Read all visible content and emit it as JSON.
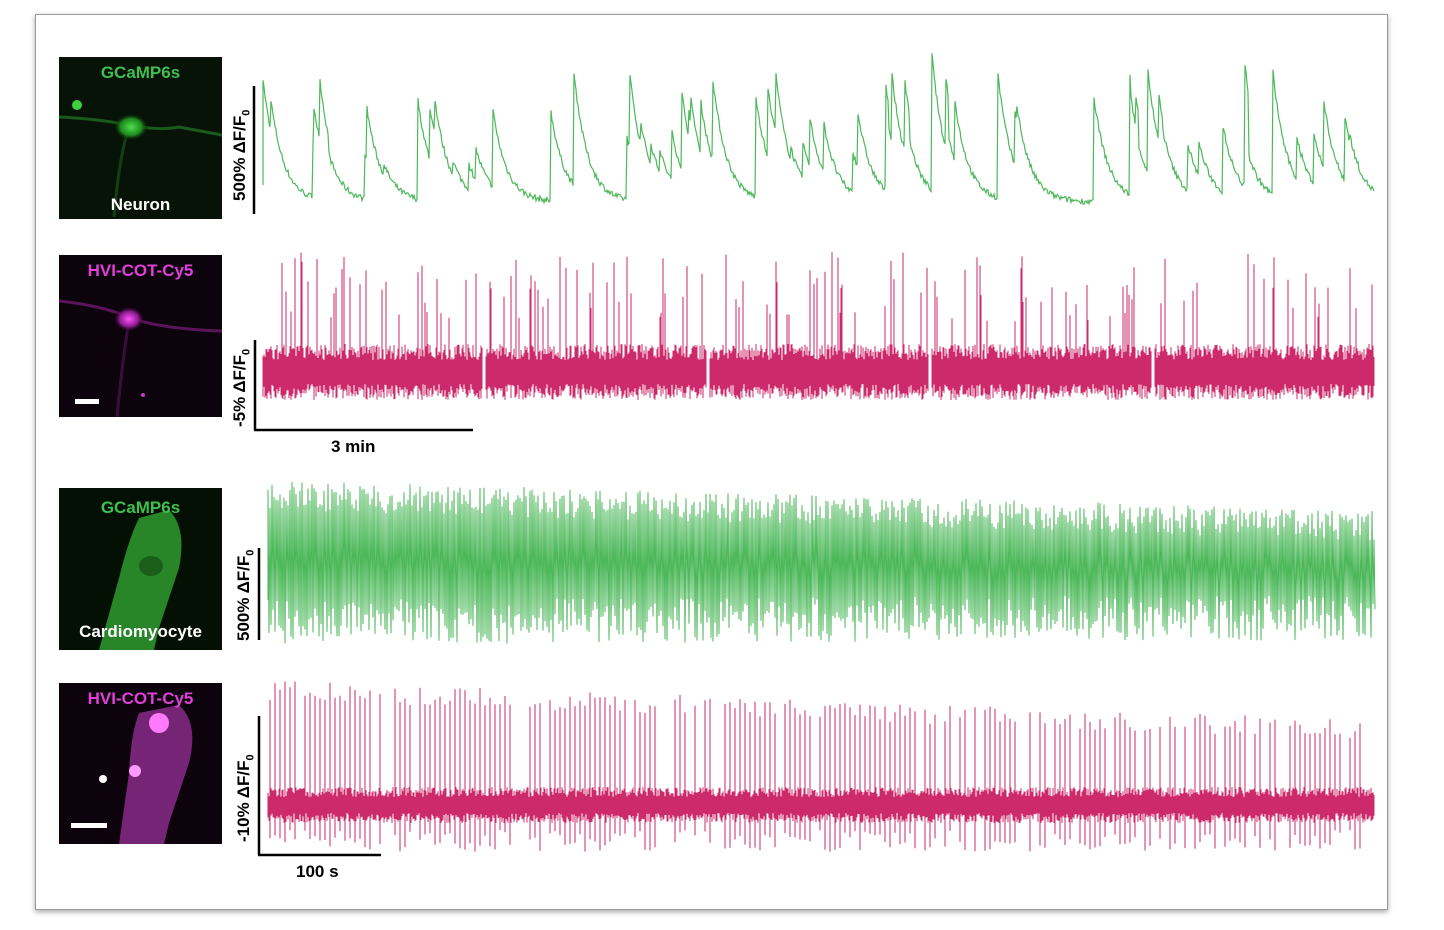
{
  "panels": [
    {
      "label_top": "GCaMP6s",
      "label_bottom": "Neuron",
      "top_color": "#3fbf4f"
    },
    {
      "label_top": "HVI-COT-Cy5",
      "label_bottom": "",
      "top_color": "#e040d8"
    },
    {
      "label_top": "GCaMP6s",
      "label_bottom": "Cardiomyocyte",
      "top_color": "#3fbf4f"
    },
    {
      "label_top": "HVI-COT-Cy5",
      "label_bottom": "",
      "top_color": "#e040d8"
    }
  ],
  "scalebars": {
    "neuron_gcamp": {
      "value": "500% ΔF/F",
      "sub": "0"
    },
    "neuron_hvi": {
      "value": "-5% ΔF/F",
      "sub": "0"
    },
    "neuron_time": "3 min",
    "cardio_gcamp": {
      "value": "500% ΔF/F",
      "sub": "0"
    },
    "cardio_hvi": {
      "value": "-10% ΔF/F",
      "sub": "0"
    },
    "cardio_time": "100 s"
  },
  "colors": {
    "gcamp": "#4cb85a",
    "hvi": "#cc2a6a"
  }
}
